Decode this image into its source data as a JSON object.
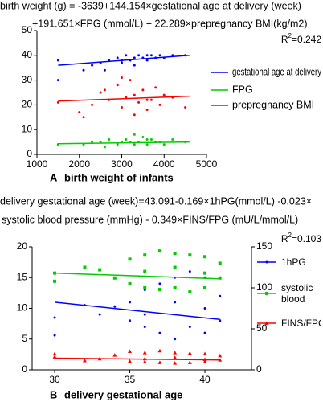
{
  "chart_data": [
    {
      "type": "scatter",
      "equation_lines": [
        "birth weight (g) = -3639+144.154×gestational age at delivery (week)",
        "+191.651×FPG (mmol/L) + 22.289×prepregnancy BMI(kg/m2)"
      ],
      "r_squared": [
        "R",
        "2",
        "=0.242"
      ],
      "panel": "A",
      "xlabel": "birth weight of infants",
      "xlim": [
        1000,
        5000
      ],
      "xticks": [
        1000,
        2000,
        3000,
        4000,
        5000
      ],
      "ylim": [
        0,
        50
      ],
      "yticks": [
        0,
        10,
        20,
        30,
        40,
        50
      ],
      "series": [
        {
          "name": "gestational age at delivery",
          "color": "#0000ff",
          "marker": "circle",
          "x": [
            1500,
            1500,
            2100,
            2300,
            2500,
            2700,
            2900,
            3000,
            3100,
            3200,
            3300,
            3400,
            3500,
            3600,
            3700,
            3800,
            3900,
            4000,
            4200,
            4500,
            2600,
            3300,
            3000,
            3600
          ],
          "values": [
            30,
            38,
            34,
            36,
            37,
            38,
            39,
            37,
            40,
            38,
            39,
            40,
            39,
            38,
            40,
            39,
            40,
            39,
            40,
            40,
            34,
            36,
            38,
            40
          ],
          "fit_x": [
            1500,
            4600
          ],
          "fit_values": [
            36,
            40
          ]
        },
        {
          "name": "FPG",
          "color": "#00cc00",
          "marker": "circle",
          "x": [
            1500,
            1500,
            2100,
            2300,
            2500,
            2700,
            2900,
            3000,
            3100,
            3200,
            3300,
            3400,
            3500,
            3600,
            3700,
            3800,
            3900,
            4000,
            4200,
            4500,
            2600,
            3300,
            3000,
            3600
          ],
          "values": [
            4,
            4,
            4,
            5,
            5,
            6,
            4,
            5,
            6,
            5,
            4,
            5,
            7,
            4,
            6,
            5,
            5,
            4,
            6,
            5,
            3,
            8,
            5,
            6
          ],
          "fit_x": [
            1500,
            4600
          ],
          "fit_values": [
            4.3,
            5
          ]
        },
        {
          "name": "prepregnancy BMI",
          "color": "#ff0000",
          "marker": "circle",
          "x": [
            1500,
            2000,
            2100,
            2300,
            2500,
            2700,
            2900,
            3000,
            3100,
            3200,
            3300,
            3400,
            3500,
            3600,
            3700,
            3800,
            3900,
            4000,
            4200,
            4500,
            2600,
            3300,
            3000,
            3600
          ],
          "values": [
            21,
            17,
            15,
            20,
            25,
            22,
            28,
            19,
            23,
            30,
            24,
            21,
            26,
            18,
            22,
            27,
            20,
            24,
            23,
            19,
            26,
            16,
            31,
            22
          ],
          "fit_x": [
            1500,
            4600
          ],
          "fit_values": [
            21.5,
            23.5
          ]
        }
      ]
    },
    {
      "type": "scatter",
      "equation_lines": [
        "delivery gestational age (week)=43.091-0.169×1hPG(mmol/L) -0.023×",
        "systolic blood pressure (mmHg) - 0.349×FINS/FPG (mU/L/mmol/L)"
      ],
      "r_squared": [
        "R",
        "2",
        "=0.103"
      ],
      "panel": "B",
      "xlabel": "delivery gestational age",
      "xlim": [
        28.5,
        43.1
      ],
      "xticks": [
        30,
        35,
        40
      ],
      "ylim": [
        0,
        20
      ],
      "yticks": [
        0,
        5,
        10,
        15,
        20
      ],
      "y2lim": [
        0,
        150
      ],
      "y2ticks": [
        0,
        50,
        100,
        150
      ],
      "series": [
        {
          "name": "1hPG",
          "color": "#0000ff",
          "marker": "circle",
          "x": [
            30,
            30,
            32,
            33,
            34,
            35,
            35,
            36,
            36,
            37,
            37,
            38,
            38,
            39,
            39,
            40,
            40,
            41,
            41,
            36,
            38,
            40
          ],
          "values": [
            5.6,
            8.5,
            10.5,
            9.0,
            10.3,
            8,
            11,
            7,
            13,
            6,
            14,
            5,
            15,
            7,
            16,
            6,
            15,
            8,
            12,
            9,
            11,
            10
          ],
          "fit_x": [
            30,
            41
          ],
          "fit_values": [
            11,
            8.2
          ]
        },
        {
          "name": "systolic blood pressure",
          "color": "#00cc00",
          "marker": "square",
          "axis": "y2",
          "x": [
            30,
            30,
            32,
            33,
            34,
            35,
            35,
            36,
            36,
            37,
            37,
            38,
            38,
            39,
            39,
            40,
            40,
            41,
            41,
            36,
            38,
            40
          ],
          "values": [
            108,
            118,
            125,
            122,
            112,
            105,
            135,
            100,
            140,
            98,
            145,
            100,
            142,
            95,
            140,
            100,
            138,
            112,
            130,
            120,
            125,
            118
          ],
          "fit_x": [
            30,
            41
          ],
          "fit_values": [
            118,
            111
          ]
        },
        {
          "name": "FINS/FPG",
          "color": "#ff0000",
          "marker": "triangle",
          "x": [
            30,
            30,
            32,
            33,
            34,
            35,
            35,
            36,
            36,
            37,
            37,
            38,
            38,
            39,
            39,
            40,
            40,
            41,
            41,
            36,
            38,
            40
          ],
          "values": [
            2.1,
            2.6,
            1.5,
            1.8,
            2.4,
            1.4,
            3.0,
            1.3,
            2.8,
            1.2,
            3.1,
            1.1,
            2.8,
            1.2,
            2.7,
            1.3,
            2.6,
            1.6,
            2.3,
            1.8,
            2.0,
            1.7
          ],
          "fit_x": [
            30,
            41
          ],
          "fit_values": [
            1.9,
            1.6
          ]
        }
      ]
    }
  ]
}
